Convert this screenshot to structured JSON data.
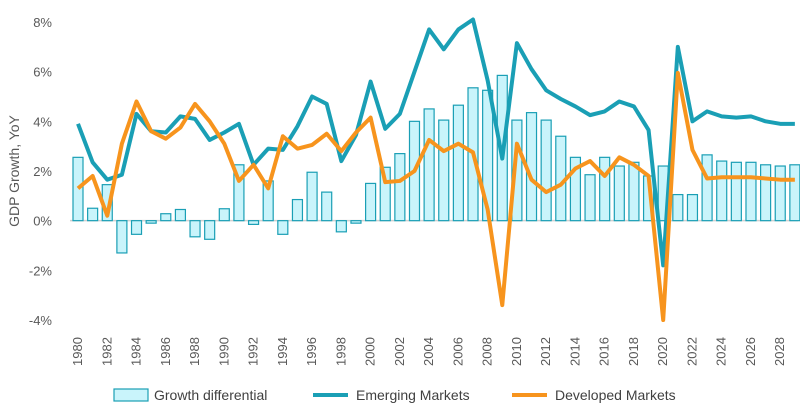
{
  "chart_data": {
    "type": "bar+line",
    "title": "",
    "xlabel": "",
    "ylabel": "GDP Growth, YoY",
    "ylim": [
      -4,
      8
    ],
    "yticks": [
      "-4%",
      "-2%",
      "0%",
      "2%",
      "4%",
      "6%",
      "8%"
    ],
    "ytick_values": [
      -4,
      -2,
      0,
      2,
      4,
      6,
      8
    ],
    "x": [
      1980,
      1981,
      1982,
      1983,
      1984,
      1985,
      1986,
      1987,
      1988,
      1989,
      1990,
      1991,
      1992,
      1993,
      1994,
      1995,
      1996,
      1997,
      1998,
      1999,
      2000,
      2001,
      2002,
      2003,
      2004,
      2005,
      2006,
      2007,
      2008,
      2009,
      2010,
      2011,
      2012,
      2013,
      2014,
      2015,
      2016,
      2017,
      2018,
      2019,
      2020,
      2021,
      2022,
      2023,
      2024,
      2025,
      2026,
      2027,
      2028,
      2029
    ],
    "xtick_labels": [
      "1980",
      "1982",
      "1984",
      "1986",
      "1988",
      "1990",
      "1992",
      "1994",
      "1996",
      "1998",
      "2000",
      "2002",
      "2004",
      "2006",
      "2008",
      "2010",
      "2012",
      "2014",
      "2016",
      "2018",
      "2020",
      "2022",
      "2024",
      "2026",
      "2028"
    ],
    "grid": false,
    "legend_position": "bottom",
    "series": [
      {
        "name": "Growth differential",
        "kind": "bar",
        "color": "#1a9fb5",
        "fill": "#c9f4fb",
        "values": [
          2.55,
          0.5,
          1.45,
          -1.3,
          -0.55,
          -0.1,
          0.28,
          0.45,
          -0.65,
          -0.75,
          0.48,
          2.25,
          -0.15,
          1.6,
          -0.55,
          0.85,
          1.95,
          1.15,
          -0.45,
          -0.1,
          1.5,
          2.15,
          2.7,
          4.0,
          4.5,
          4.05,
          4.65,
          5.35,
          5.25,
          5.85,
          4.05,
          4.35,
          4.05,
          3.4,
          2.55,
          1.85,
          2.55,
          2.2,
          2.35,
          1.8,
          2.2,
          1.05,
          1.05,
          2.65,
          2.4,
          2.35,
          2.35,
          2.25,
          2.2,
          2.25
        ]
      },
      {
        "name": "Emerging Markets",
        "kind": "line",
        "color": "#1a9fb5",
        "values": [
          3.9,
          2.35,
          1.65,
          1.85,
          4.3,
          3.6,
          3.55,
          4.2,
          4.1,
          3.25,
          3.55,
          3.9,
          2.25,
          2.9,
          2.85,
          3.8,
          5.0,
          4.7,
          2.4,
          3.45,
          5.6,
          3.7,
          4.3,
          6.0,
          7.7,
          6.9,
          7.7,
          8.1,
          5.65,
          2.5,
          7.15,
          6.1,
          5.25,
          4.9,
          4.6,
          4.25,
          4.4,
          4.8,
          4.6,
          3.65,
          -1.8,
          7.0,
          4.0,
          4.4,
          4.2,
          4.15,
          4.2,
          4.0,
          3.9,
          3.9
        ]
      },
      {
        "name": "Developed Markets",
        "kind": "line",
        "color": "#f7941d",
        "values": [
          1.3,
          1.8,
          0.2,
          3.1,
          4.8,
          3.6,
          3.3,
          3.75,
          4.7,
          4.0,
          3.1,
          1.6,
          2.25,
          1.3,
          3.4,
          2.9,
          3.05,
          3.5,
          2.8,
          3.55,
          4.15,
          1.55,
          1.6,
          2.0,
          3.25,
          2.8,
          3.1,
          2.75,
          0.45,
          -3.4,
          3.1,
          1.65,
          1.15,
          1.45,
          2.1,
          2.4,
          1.8,
          2.55,
          2.25,
          1.8,
          -4.0,
          5.95,
          2.85,
          1.7,
          1.75,
          1.75,
          1.75,
          1.7,
          1.65,
          1.65
        ]
      }
    ]
  }
}
